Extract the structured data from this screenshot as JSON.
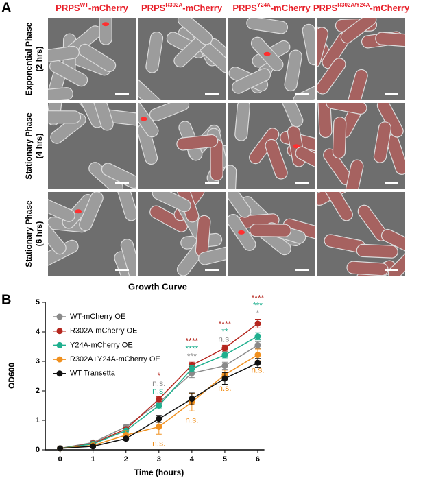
{
  "panel_a": {
    "label": "A",
    "columns": [
      {
        "base": "PRPS",
        "sup": "WT",
        "suffix": "-mCherry"
      },
      {
        "base": "PRPS",
        "sup": "R302A",
        "suffix": "-mCherry"
      },
      {
        "base": "PRPS",
        "sup": "Y24A",
        "suffix": "-mCherry"
      },
      {
        "base": "PRPS",
        "sup": "R302A/Y24A",
        "suffix": "-mCherry"
      }
    ],
    "rows": [
      [
        "Exponential Phase",
        "(2 hrs)"
      ],
      [
        "Stationary Phase",
        "(4 hrs)"
      ],
      [
        "Stationary Phase",
        "(6 hrs)"
      ]
    ]
  },
  "chart_data": {
    "type": "line",
    "panel_label": "B",
    "title": "Growth Curve",
    "xlabel": "Time (hours)",
    "ylabel": "OD600",
    "x": [
      0,
      1,
      2,
      3,
      4,
      5,
      6
    ],
    "xlim": [
      -0.45,
      6.2
    ],
    "xticks": [
      0,
      1,
      2,
      3,
      4,
      5,
      6
    ],
    "ylim": [
      0,
      5
    ],
    "yticks": [
      0,
      1,
      2,
      3,
      4,
      5
    ],
    "series": [
      {
        "name": "WT-mCherry OE",
        "color": "#8a8a8a",
        "values": [
          0.05,
          0.25,
          0.78,
          1.6,
          2.6,
          2.85,
          3.55
        ],
        "errors": [
          0.02,
          0.04,
          0.06,
          0.1,
          0.15,
          0.12,
          0.12
        ]
      },
      {
        "name": "R302A-mCherry OE",
        "color": "#b5261e",
        "values": [
          0.05,
          0.22,
          0.7,
          1.72,
          2.87,
          3.45,
          4.28
        ],
        "errors": [
          0.02,
          0.04,
          0.06,
          0.08,
          0.1,
          0.1,
          0.15
        ]
      },
      {
        "name": "Y24A-mCherry OE",
        "color": "#1fb08f",
        "values": [
          0.05,
          0.2,
          0.65,
          1.5,
          2.75,
          3.22,
          3.85
        ],
        "errors": [
          0.02,
          0.04,
          0.05,
          0.08,
          0.1,
          0.1,
          0.12
        ]
      },
      {
        "name": "R302A+Y24A-mCherry OE",
        "color": "#f0901e",
        "values": [
          0.05,
          0.15,
          0.5,
          0.78,
          1.62,
          2.55,
          3.22
        ],
        "errors": [
          0.02,
          0.04,
          0.15,
          0.25,
          0.3,
          0.15,
          0.2
        ]
      },
      {
        "name": "WT Transetta",
        "color": "#111111",
        "values": [
          0.05,
          0.12,
          0.38,
          1.05,
          1.73,
          2.42,
          2.95
        ],
        "errors": [
          0.02,
          0.03,
          0.06,
          0.12,
          0.2,
          0.2,
          0.15
        ]
      }
    ],
    "annotations": [
      {
        "x": 3,
        "series": 1,
        "text": "*"
      },
      {
        "x": 3,
        "series": 0,
        "text": "n.s."
      },
      {
        "x": 3,
        "series": 2,
        "text": "n.s."
      },
      {
        "x": 3,
        "series": 3,
        "text": "n.s."
      },
      {
        "x": 4,
        "series": 1,
        "text": "****"
      },
      {
        "x": 4,
        "series": 2,
        "text": "****"
      },
      {
        "x": 4,
        "series": 0,
        "text": "***"
      },
      {
        "x": 4,
        "series": 3,
        "text": "n.s."
      },
      {
        "x": 5,
        "series": 1,
        "text": "****"
      },
      {
        "x": 5,
        "series": 2,
        "text": "**"
      },
      {
        "x": 5,
        "series": 0,
        "text": "n.s."
      },
      {
        "x": 5,
        "series": 3,
        "text": "n.s."
      },
      {
        "x": 6,
        "series": 1,
        "text": "****"
      },
      {
        "x": 6,
        "series": 2,
        "text": "***"
      },
      {
        "x": 6,
        "series": 0,
        "text": "*"
      },
      {
        "x": 6,
        "series": 3,
        "text": "n.s."
      }
    ]
  }
}
